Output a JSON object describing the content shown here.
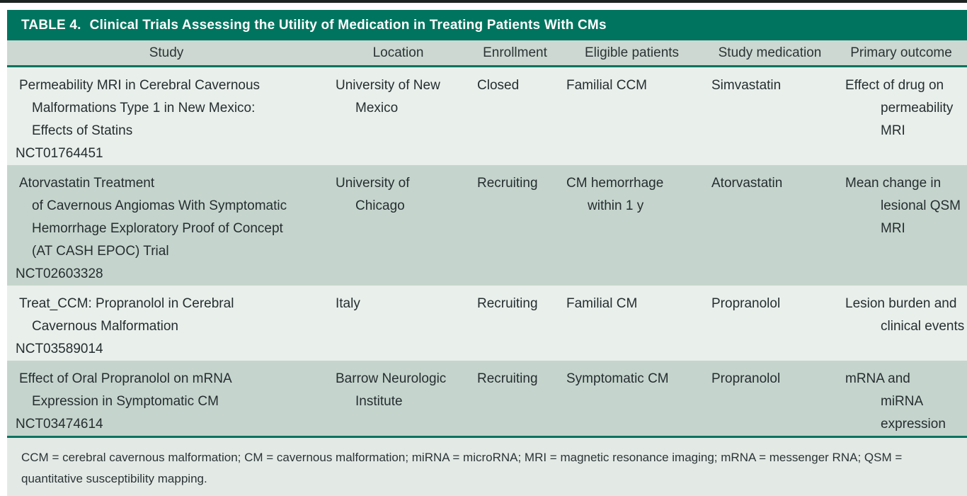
{
  "table": {
    "title_label": "TABLE 4.",
    "title": "Clinical Trials Assessing the Utility of Medication in Treating Patients With CMs",
    "columns": [
      "Study",
      "Location",
      "Enrollment",
      "Eligible patients",
      "Study medication",
      "Primary outcome"
    ],
    "rows": [
      {
        "study": [
          "Permeability MRI in Cerebral Cavernous",
          "Malformations Type 1 in New Mexico:",
          "Effects of Statins"
        ],
        "nct": "NCT01764451",
        "location": [
          "University of New",
          "Mexico"
        ],
        "enrollment": "Closed",
        "eligible": [
          "Familial CCM"
        ],
        "medication": "Simvastatin",
        "outcome": [
          "Effect of drug on",
          "permeability MRI"
        ]
      },
      {
        "study": [
          "Atorvastatin Treatment",
          "of Cavernous Angiomas With Symptomatic",
          "Hemorrhage Exploratory Proof of Concept",
          "(AT CASH EPOC) Trial"
        ],
        "nct": "NCT02603328",
        "location": [
          "University of",
          "Chicago"
        ],
        "enrollment": "Recruiting",
        "eligible": [
          "CM hemorrhage",
          "within 1 y"
        ],
        "medication": "Atorvastatin",
        "outcome": [
          "Mean change in",
          "lesional QSM",
          "MRI"
        ]
      },
      {
        "study": [
          "Treat_CCM: Propranolol in Cerebral",
          "Cavernous Malformation"
        ],
        "nct": "NCT03589014",
        "location": [
          "Italy"
        ],
        "enrollment": "Recruiting",
        "eligible": [
          "Familial CM"
        ],
        "medication": "Propranolol",
        "outcome": [
          "Lesion burden and",
          "clinical events"
        ]
      },
      {
        "study": [
          "Effect of Oral Propranolol on mRNA",
          "Expression in Symptomatic CM"
        ],
        "nct": "NCT03474614",
        "location": [
          "Barrow Neurologic",
          "Institute"
        ],
        "enrollment": "Recruiting",
        "eligible": [
          "Symptomatic CM"
        ],
        "medication": "Propranolol",
        "outcome": [
          "mRNA and",
          "miRNA",
          "expression"
        ]
      }
    ],
    "footnote": "CCM = cerebral cavernous malformation; CM = cavernous malformation; miRNA = microRNA; MRI = magnetic resonance imaging; mRNA = messenger RNA; QSM = quantitative susceptibility mapping."
  },
  "colors": {
    "accent_teal": "#00745f",
    "header_row_bg": "#ccd8d1",
    "row_light_bg": "#e9efeb",
    "row_sage_bg": "#c5d5cd",
    "footnote_bg": "#e3eae6",
    "title_text": "#ffffff",
    "body_text": "#262e30",
    "top_border": "#1c2422"
  }
}
